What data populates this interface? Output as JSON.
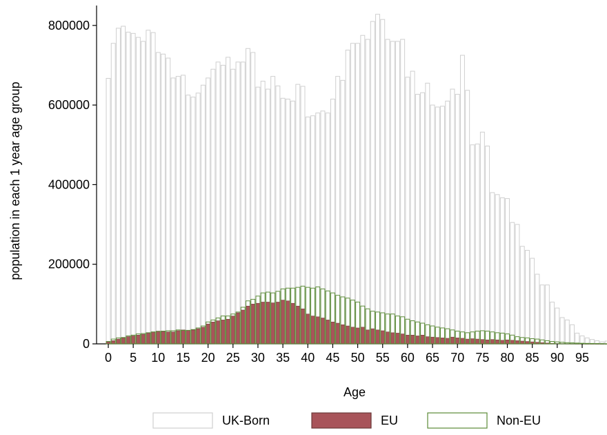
{
  "chart_data": {
    "type": "bar",
    "title": "",
    "xlabel": "Age",
    "ylabel": "population in each 1 year age group",
    "xlim": [
      -1,
      100
    ],
    "ylim": [
      0,
      850000
    ],
    "x_ticks": [
      "0",
      "5",
      "10",
      "15",
      "20",
      "25",
      "30",
      "35",
      "40",
      "45",
      "50",
      "55",
      "60",
      "65",
      "70",
      "75",
      "80",
      "85",
      "90",
      "95"
    ],
    "y_ticks": [
      "0",
      "200000",
      "400000",
      "600000",
      "800000"
    ],
    "grid": false,
    "legend_position": "bottom",
    "x": [
      0,
      1,
      2,
      3,
      4,
      5,
      6,
      7,
      8,
      9,
      10,
      11,
      12,
      13,
      14,
      15,
      16,
      17,
      18,
      19,
      20,
      21,
      22,
      23,
      24,
      25,
      26,
      27,
      28,
      29,
      30,
      31,
      32,
      33,
      34,
      35,
      36,
      37,
      38,
      39,
      40,
      41,
      42,
      43,
      44,
      45,
      46,
      47,
      48,
      49,
      50,
      51,
      52,
      53,
      54,
      55,
      56,
      57,
      58,
      59,
      60,
      61,
      62,
      63,
      64,
      65,
      66,
      67,
      68,
      69,
      70,
      71,
      72,
      73,
      74,
      75,
      76,
      77,
      78,
      79,
      80,
      81,
      82,
      83,
      84,
      85,
      86,
      87,
      88,
      89,
      90,
      91,
      92,
      93,
      94,
      95,
      96,
      97,
      98,
      99,
      100
    ],
    "series": [
      {
        "name": "UK-Born",
        "color": "#cfcfcf",
        "style": "outline",
        "values": [
          667000,
          755000,
          793000,
          798000,
          783000,
          780000,
          770000,
          760000,
          788000,
          782000,
          732000,
          728000,
          718000,
          668000,
          672000,
          675000,
          625000,
          620000,
          630000,
          650000,
          668000,
          690000,
          708000,
          700000,
          720000,
          690000,
          708000,
          708000,
          742000,
          732000,
          645000,
          660000,
          640000,
          672000,
          648000,
          617000,
          615000,
          610000,
          652000,
          647000,
          570000,
          573000,
          580000,
          585000,
          580000,
          615000,
          672000,
          662000,
          738000,
          755000,
          755000,
          775000,
          765000,
          810000,
          828000,
          815000,
          765000,
          760000,
          760000,
          765000,
          670000,
          685000,
          627000,
          631000,
          655000,
          600000,
          595000,
          597000,
          610000,
          640000,
          627000,
          725000,
          637000,
          500000,
          502000,
          532000,
          497000,
          380000,
          375000,
          367000,
          365000,
          305000,
          300000,
          245000,
          235000,
          215000,
          175000,
          148000,
          148000,
          105000,
          90000,
          66000,
          60000,
          48000,
          27000,
          20000,
          15000,
          11000,
          8000,
          5000,
          7000
        ]
      },
      {
        "name": "EU",
        "color": "#a8545a",
        "style": "filled",
        "values": [
          5000,
          8000,
          12000,
          15000,
          18000,
          20000,
          22000,
          24000,
          27000,
          30000,
          32000,
          31000,
          30000,
          30000,
          33000,
          35000,
          34000,
          35000,
          38000,
          42000,
          50000,
          55000,
          58000,
          60000,
          62000,
          70000,
          78000,
          85000,
          95000,
          100000,
          102000,
          105000,
          105000,
          103000,
          105000,
          110000,
          108000,
          102000,
          95000,
          88000,
          75000,
          70000,
          68000,
          65000,
          60000,
          55000,
          52000,
          48000,
          45000,
          42000,
          40000,
          42000,
          35000,
          38000,
          35000,
          33000,
          30000,
          28000,
          27000,
          25000,
          22000,
          22000,
          20000,
          22000,
          18000,
          17000,
          16000,
          15000,
          14000,
          17000,
          15000,
          14000,
          12000,
          13000,
          12000,
          11000,
          10000,
          11000,
          10000,
          9000,
          10000,
          9000,
          8000,
          7000,
          6000,
          5000,
          4000,
          3000,
          2000,
          1000,
          800,
          600,
          400,
          300,
          200,
          150,
          100,
          80,
          50,
          30,
          20
        ]
      },
      {
        "name": "Non-EU",
        "color": "#5a8a36",
        "style": "outline",
        "values": [
          6000,
          12000,
          15000,
          16000,
          20000,
          22000,
          25000,
          26000,
          28000,
          30000,
          31000,
          32000,
          33000,
          33000,
          35000,
          34000,
          34000,
          36000,
          40000,
          45000,
          55000,
          60000,
          65000,
          70000,
          70000,
          75000,
          80000,
          92000,
          108000,
          112000,
          120000,
          128000,
          130000,
          128000,
          132000,
          138000,
          140000,
          140000,
          142000,
          145000,
          142000,
          140000,
          143000,
          138000,
          133000,
          128000,
          122000,
          118000,
          115000,
          110000,
          105000,
          95000,
          88000,
          82000,
          80000,
          78000,
          75000,
          75000,
          70000,
          68000,
          62000,
          58000,
          55000,
          52000,
          48000,
          45000,
          42000,
          40000,
          38000,
          35000,
          32000,
          30000,
          28000,
          30000,
          32000,
          33000,
          32000,
          30000,
          28000,
          27000,
          25000,
          22000,
          18000,
          16000,
          15000,
          13000,
          12000,
          10000,
          8000,
          6000,
          5000,
          4000,
          3000,
          2500,
          2000,
          1500,
          1200,
          1000,
          800,
          600,
          400
        ]
      }
    ]
  }
}
